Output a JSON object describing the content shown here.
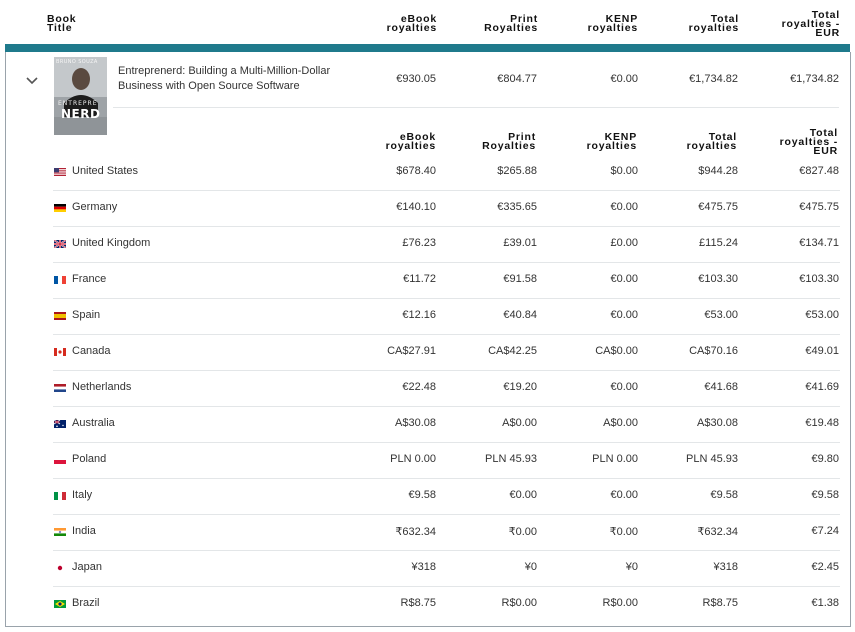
{
  "header": {
    "book_title": [
      "Book",
      "Title"
    ],
    "ebook": [
      "eBook",
      "royalties"
    ],
    "print": [
      "Print",
      "Royalties"
    ],
    "kenp": [
      "KENP",
      "royalties"
    ],
    "total": [
      "Total",
      "royalties"
    ],
    "total_eur": [
      "Total",
      "royalties -",
      "EUR"
    ]
  },
  "book": {
    "title": "Entreprenerd: Building a Multi-Million-Dollar Business with Open Source Software",
    "cover": {
      "author": "BRUNO SOUZA",
      "title_top": "ENTREPRE",
      "title_main": "NERD"
    },
    "ebook": "€930.05",
    "print": "€804.77",
    "kenp": "€0.00",
    "total": "€1,734.82",
    "total_eur": "€1,734.82"
  },
  "subheader": {
    "ebook": [
      "eBook",
      "royalties"
    ],
    "print": [
      "Print",
      "Royalties"
    ],
    "kenp": [
      "KENP",
      "royalties"
    ],
    "total": [
      "Total",
      "royalties"
    ],
    "total_eur": [
      "Total",
      "royalties -",
      "EUR"
    ]
  },
  "rows": [
    {
      "country": "United States",
      "flag": "us",
      "ebook": "$678.40",
      "print": "$265.88",
      "kenp": "$0.00",
      "total": "$944.28",
      "eur": "€827.48"
    },
    {
      "country": "Germany",
      "flag": "de",
      "ebook": "€140.10",
      "print": "€335.65",
      "kenp": "€0.00",
      "total": "€475.75",
      "eur": "€475.75"
    },
    {
      "country": "United Kingdom",
      "flag": "gb",
      "ebook": "£76.23",
      "print": "£39.01",
      "kenp": "£0.00",
      "total": "£115.24",
      "eur": "€134.71"
    },
    {
      "country": "France",
      "flag": "fr",
      "ebook": "€11.72",
      "print": "€91.58",
      "kenp": "€0.00",
      "total": "€103.30",
      "eur": "€103.30"
    },
    {
      "country": "Spain",
      "flag": "es",
      "ebook": "€12.16",
      "print": "€40.84",
      "kenp": "€0.00",
      "total": "€53.00",
      "eur": "€53.00"
    },
    {
      "country": "Canada",
      "flag": "ca",
      "ebook": "CA$27.91",
      "print": "CA$42.25",
      "kenp": "CA$0.00",
      "total": "CA$70.16",
      "eur": "€49.01"
    },
    {
      "country": "Netherlands",
      "flag": "nl",
      "ebook": "€22.48",
      "print": "€19.20",
      "kenp": "€0.00",
      "total": "€41.68",
      "eur": "€41.69"
    },
    {
      "country": "Australia",
      "flag": "au",
      "ebook": "A$30.08",
      "print": "A$0.00",
      "kenp": "A$0.00",
      "total": "A$30.08",
      "eur": "€19.48"
    },
    {
      "country": "Poland",
      "flag": "pl",
      "ebook": "PLN 0.00",
      "print": "PLN 45.93",
      "kenp": "PLN 0.00",
      "total": "PLN 45.93",
      "eur": "€9.80"
    },
    {
      "country": "Italy",
      "flag": "it",
      "ebook": "€9.58",
      "print": "€0.00",
      "kenp": "€0.00",
      "total": "€9.58",
      "eur": "€9.58"
    },
    {
      "country": "India",
      "flag": "in",
      "ebook": "₹632.34",
      "print": "₹0.00",
      "kenp": "₹0.00",
      "total": "₹632.34",
      "eur": "€7.24"
    },
    {
      "country": "Japan",
      "flag": "jp",
      "ebook": "¥318",
      "print": "¥0",
      "kenp": "¥0",
      "total": "¥318",
      "eur": "€2.45"
    },
    {
      "country": "Brazil",
      "flag": "br",
      "ebook": "R$8.75",
      "print": "R$0.00",
      "kenp": "R$0.00",
      "total": "R$8.75",
      "eur": "€1.38"
    }
  ]
}
